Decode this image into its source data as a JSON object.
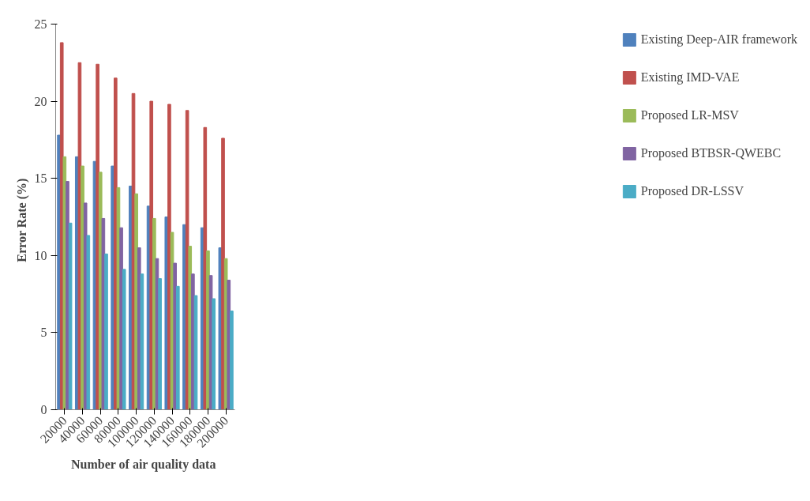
{
  "chart_data": {
    "type": "bar",
    "xlabel": "Number  of air quality data",
    "ylabel": "Error  Rate  (%)",
    "categories": [
      "20000",
      "40000",
      "60000",
      "80000",
      "100000",
      "120000",
      "140000",
      "160000",
      "180000",
      "200000"
    ],
    "series": [
      {
        "name": "Existing Deep-AIR framework",
        "color": "#4f81bd",
        "values": [
          17.8,
          16.4,
          16.1,
          15.8,
          14.5,
          13.2,
          12.5,
          12,
          11.8,
          10.5
        ]
      },
      {
        "name": "Existing IMD-VAE",
        "color": "#c0504d",
        "values": [
          23.8,
          22.5,
          22.4,
          21.5,
          20.5,
          20,
          19.8,
          19.4,
          18.3,
          17.6
        ]
      },
      {
        "name": "Proposed LR-MSV",
        "color": "#9bbb59",
        "values": [
          16.4,
          15.8,
          15.4,
          14.4,
          14,
          12.4,
          11.5,
          10.6,
          10.3,
          9.8
        ]
      },
      {
        "name": "Proposed BTBSR-QWEBC",
        "color": "#8064a2",
        "values": [
          14.8,
          13.4,
          12.4,
          11.8,
          10.5,
          9.8,
          9.5,
          8.8,
          8.7,
          8.4
        ]
      },
      {
        "name": "Proposed DR-LSSV",
        "color": "#4bacc6",
        "values": [
          12.1,
          11.3,
          10.1,
          9.1,
          8.8,
          8.5,
          8,
          7.4,
          7.2,
          6.4
        ]
      }
    ],
    "ylim": [
      0,
      25
    ],
    "yticks": [
      0,
      5,
      10,
      15,
      20,
      25
    ],
    "grid": false,
    "legend": "right"
  }
}
